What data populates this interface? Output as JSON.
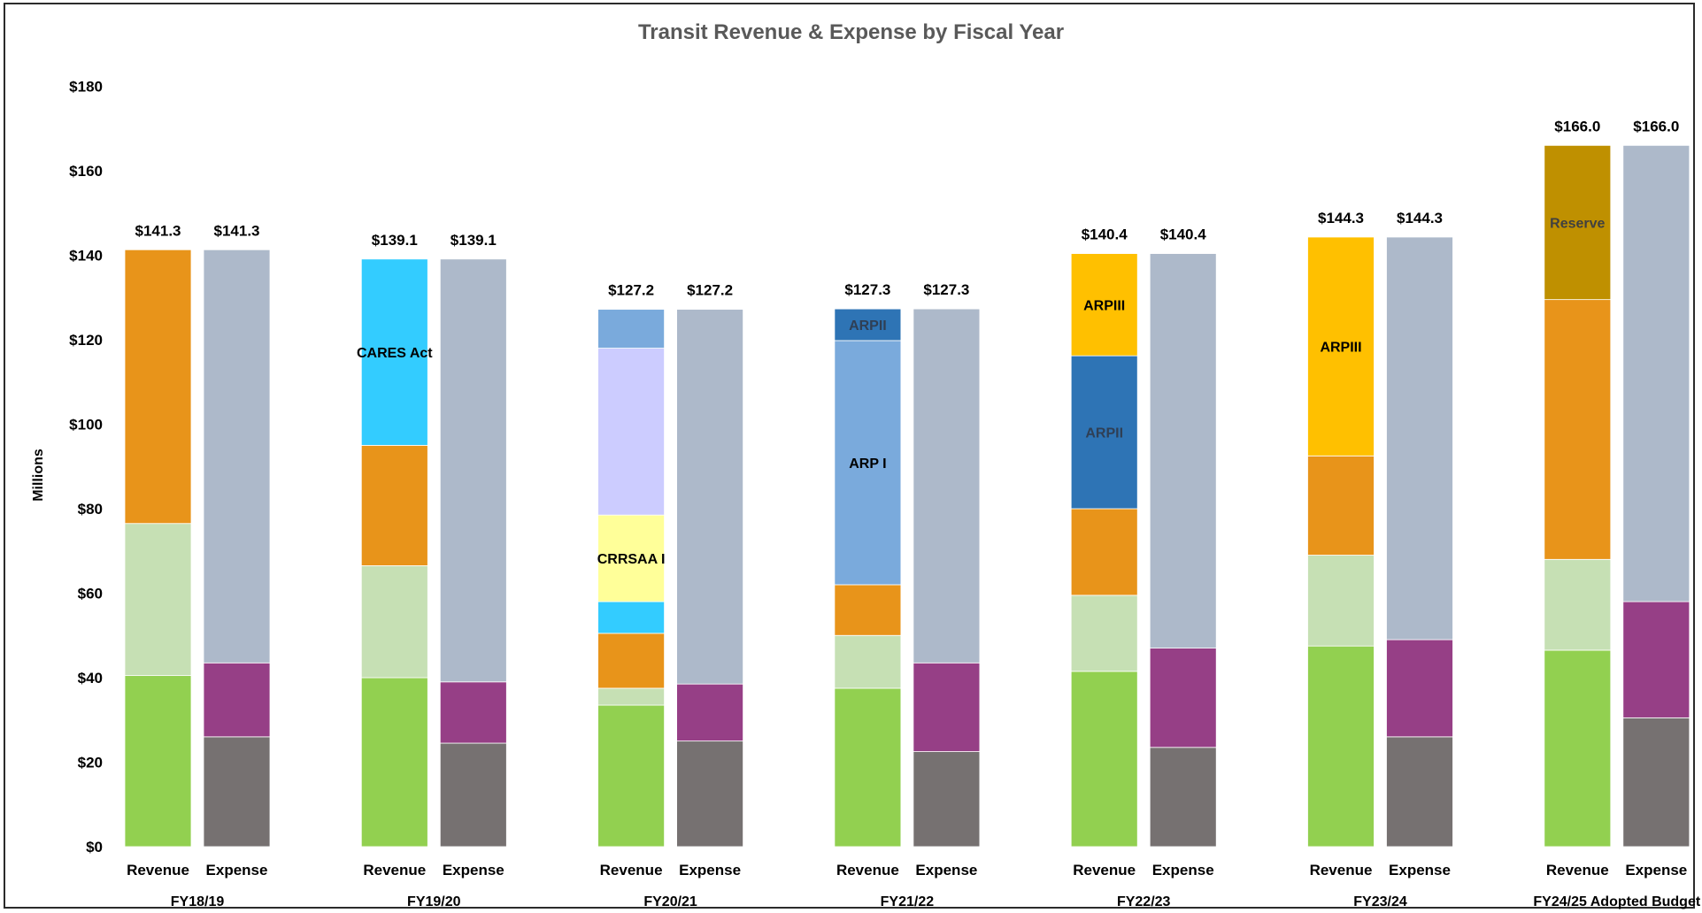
{
  "chart_data": {
    "type": "bar",
    "title": "Transit Revenue & Expense by Fiscal Year",
    "ylabel": "Millions",
    "ylim": [
      0,
      180
    ],
    "yticks": [
      "$0",
      "$20",
      "$40",
      "$60",
      "$80",
      "$100",
      "$120",
      "$140",
      "$160",
      "$180"
    ],
    "ytick_values": [
      0,
      20,
      40,
      60,
      80,
      100,
      120,
      140,
      160,
      180
    ],
    "grid": false,
    "legend": "none",
    "groups": [
      {
        "label": "FY18/19",
        "bars": [
          {
            "label": "Revenue",
            "total": "$141.3",
            "segments": [
              {
                "value": 40.5,
                "color": "#92d050"
              },
              {
                "value": 36.0,
                "color": "#c6e0b4"
              },
              {
                "value": 64.8,
                "color": "#e8941a"
              }
            ]
          },
          {
            "label": "Expense",
            "total": "$141.3",
            "segments": [
              {
                "value": 26.0,
                "color": "#767171"
              },
              {
                "value": 17.5,
                "color": "#963f86"
              },
              {
                "value": 97.8,
                "color": "#adb9ca"
              }
            ]
          }
        ]
      },
      {
        "label": "FY19/20",
        "bars": [
          {
            "label": "Revenue",
            "total": "$139.1",
            "segments": [
              {
                "value": 40.0,
                "color": "#92d050"
              },
              {
                "value": 26.5,
                "color": "#c6e0b4"
              },
              {
                "value": 28.5,
                "color": "#e8941a"
              },
              {
                "value": 44.1,
                "color": "#33ccff",
                "label": "CARES Act",
                "label_color": "#000000"
              }
            ]
          },
          {
            "label": "Expense",
            "total": "$139.1",
            "segments": [
              {
                "value": 24.5,
                "color": "#767171"
              },
              {
                "value": 14.5,
                "color": "#963f86"
              },
              {
                "value": 100.1,
                "color": "#adb9ca"
              }
            ]
          }
        ]
      },
      {
        "label": "FY20/21",
        "bars": [
          {
            "label": "Revenue",
            "total": "$127.2",
            "segments": [
              {
                "value": 33.5,
                "color": "#92d050"
              },
              {
                "value": 4.0,
                "color": "#c6e0b4"
              },
              {
                "value": 13.0,
                "color": "#e8941a"
              },
              {
                "value": 7.5,
                "color": "#33ccff"
              },
              {
                "value": 20.5,
                "color": "#ffff99",
                "label": "CRRSAA I",
                "label_color": "#000000"
              },
              {
                "value": 39.5,
                "color": "#ccccff"
              },
              {
                "value": 9.2,
                "color": "#7aaadc"
              }
            ]
          },
          {
            "label": "Expense",
            "total": "$127.2",
            "segments": [
              {
                "value": 25.0,
                "color": "#767171"
              },
              {
                "value": 13.5,
                "color": "#963f86"
              },
              {
                "value": 88.7,
                "color": "#adb9ca"
              }
            ]
          }
        ]
      },
      {
        "label": "FY21/22",
        "bars": [
          {
            "label": "Revenue",
            "total": "$127.3",
            "segments": [
              {
                "value": 37.5,
                "color": "#92d050"
              },
              {
                "value": 12.5,
                "color": "#c6e0b4"
              },
              {
                "value": 12.0,
                "color": "#e8941a"
              },
              {
                "value": 57.8,
                "color": "#7aaadc",
                "label": "ARP I",
                "label_color": "#000000"
              },
              {
                "value": 7.5,
                "color": "#2e74b5",
                "label": "ARPII",
                "label_color": "#2f3f55"
              }
            ]
          },
          {
            "label": "Expense",
            "total": "$127.3",
            "segments": [
              {
                "value": 22.5,
                "color": "#767171"
              },
              {
                "value": 21.0,
                "color": "#963f86"
              },
              {
                "value": 83.8,
                "color": "#adb9ca"
              }
            ]
          }
        ]
      },
      {
        "label": "FY22/23",
        "bars": [
          {
            "label": "Revenue",
            "total": "$140.4",
            "segments": [
              {
                "value": 41.5,
                "color": "#92d050"
              },
              {
                "value": 18.0,
                "color": "#c6e0b4"
              },
              {
                "value": 20.5,
                "color": "#e8941a"
              },
              {
                "value": 36.2,
                "color": "#2e74b5",
                "label": "ARPII",
                "label_color": "#2f3f55"
              },
              {
                "value": 24.2,
                "color": "#ffc000",
                "label": "ARPIII",
                "label_color": "#000000"
              }
            ]
          },
          {
            "label": "Expense",
            "total": "$140.4",
            "segments": [
              {
                "value": 23.5,
                "color": "#767171"
              },
              {
                "value": 23.5,
                "color": "#963f86"
              },
              {
                "value": 93.4,
                "color": "#adb9ca"
              }
            ]
          }
        ]
      },
      {
        "label": "FY23/24",
        "bars": [
          {
            "label": "Revenue",
            "total": "$144.3",
            "segments": [
              {
                "value": 47.5,
                "color": "#92d050"
              },
              {
                "value": 21.5,
                "color": "#c6e0b4"
              },
              {
                "value": 23.5,
                "color": "#e8941a"
              },
              {
                "value": 51.8,
                "color": "#ffc000",
                "label": "ARPIII",
                "label_color": "#000000"
              }
            ]
          },
          {
            "label": "Expense",
            "total": "$144.3",
            "segments": [
              {
                "value": 26.0,
                "color": "#767171"
              },
              {
                "value": 23.0,
                "color": "#963f86"
              },
              {
                "value": 95.3,
                "color": "#adb9ca"
              }
            ]
          }
        ]
      },
      {
        "label": "FY24/25 Adopted Budget",
        "bars": [
          {
            "label": "Revenue",
            "total": "$166.0",
            "segments": [
              {
                "value": 46.5,
                "color": "#92d050"
              },
              {
                "value": 21.5,
                "color": "#c6e0b4"
              },
              {
                "value": 61.5,
                "color": "#e8941a"
              },
              {
                "value": 36.5,
                "color": "#bf9000",
                "label": "Reserve",
                "label_color": "#404040"
              }
            ]
          },
          {
            "label": "Expense",
            "total": "$166.0",
            "segments": [
              {
                "value": 30.5,
                "color": "#767171"
              },
              {
                "value": 27.5,
                "color": "#963f86"
              },
              {
                "value": 108.0,
                "color": "#adb9ca"
              }
            ]
          }
        ]
      }
    ]
  }
}
